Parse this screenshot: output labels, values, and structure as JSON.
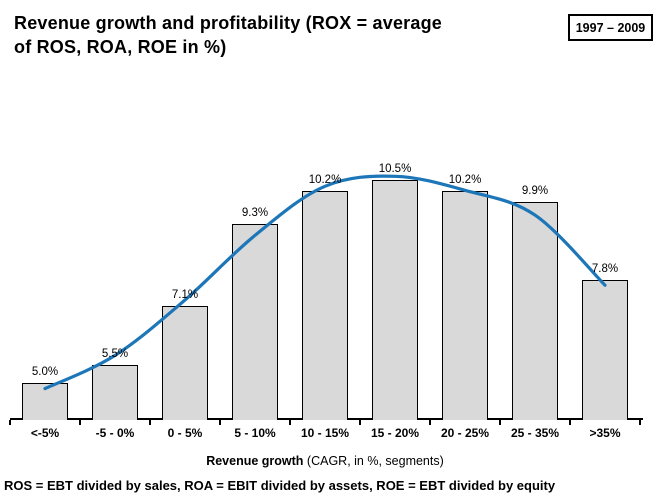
{
  "header": {
    "title_line1": "Revenue growth and profitability (ROX = average",
    "title_line2": "of ROS, ROA, ROE in %)",
    "period_badge": "1997 – 2009"
  },
  "chart_data": {
    "type": "bar",
    "title": "Revenue growth and profitability (ROX = average of ROS, ROA, ROE in %)",
    "period": "1997 – 2009",
    "categories": [
      "<-5%",
      "-5 - 0%",
      "0 - 5%",
      "5 - 10%",
      "10 - 15%",
      "15 - 20%",
      "20 - 25%",
      "25 - 35%",
      ">35%"
    ],
    "values": [
      5.0,
      5.5,
      7.1,
      9.3,
      10.2,
      10.5,
      10.2,
      9.9,
      7.8
    ],
    "value_labels": [
      "5.0%",
      "5.5%",
      "7.1%",
      "9.3%",
      "10.2%",
      "10.5%",
      "10.2%",
      "9.9%",
      "7.8%"
    ],
    "xlabel_bold": "Revenue growth",
    "xlabel_rest": " (CAGR, in %, segments)",
    "ylabel": "",
    "ylim": [
      4.0,
      10.8
    ],
    "grid": false,
    "legend": null,
    "y_axis_visible": false,
    "bar_fill": "#D9D9D9",
    "bar_border": "#000000",
    "trend_line": {
      "color": "#1C76B8",
      "values": [
        4.85,
        5.75,
        7.25,
        9.0,
        10.33,
        10.6,
        10.22,
        9.55,
        7.65
      ]
    }
  },
  "footer": {
    "definitions": "ROS = EBT divided by sales, ROA = EBIT divided by assets, ROE = EBT divided by equity"
  }
}
